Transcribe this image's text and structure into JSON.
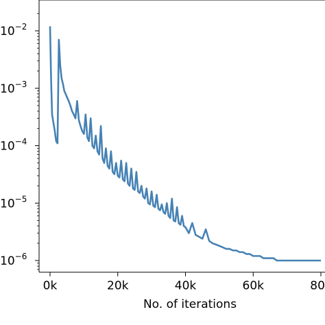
{
  "chart_data": {
    "type": "line",
    "title": "",
    "xlabel": "No. of iterations",
    "ylabel": "",
    "xscale": "linear",
    "yscale": "log",
    "xlim": [
      -4000,
      80000
    ],
    "ylim": [
      5e-07,
      0.02
    ],
    "grid": false,
    "legend": "none",
    "color": "#4682b4",
    "x_ticks": [
      {
        "value": 0,
        "label": "0k"
      },
      {
        "value": 20000,
        "label": "20k"
      },
      {
        "value": 40000,
        "label": "40k"
      },
      {
        "value": 60000,
        "label": "60k"
      },
      {
        "value": 80000,
        "label": "80k"
      }
    ],
    "y_ticks": [
      {
        "value": 0.01,
        "base": "10",
        "exp": "−2"
      },
      {
        "value": 0.001,
        "base": "10",
        "exp": "−3"
      },
      {
        "value": 0.0001,
        "base": "10",
        "exp": "−4"
      },
      {
        "value": 1e-05,
        "base": "10",
        "exp": "−5"
      },
      {
        "value": 1e-06,
        "base": "10",
        "exp": "−6"
      }
    ],
    "series": [
      {
        "x": [
          0,
          300,
          600,
          1000,
          1400,
          1800,
          2200,
          2600,
          3000,
          3400,
          3800,
          4200,
          4600,
          5000,
          5500,
          6000,
          6500,
          7000,
          7500,
          8000,
          8500,
          9000,
          9500,
          10000,
          10500,
          11000,
          11500,
          12000,
          12500,
          13000,
          13500,
          14000,
          14500,
          15000,
          15500,
          16000,
          16500,
          17000,
          17500,
          18000,
          18500,
          19000,
          19500,
          20000,
          20500,
          21000,
          21500,
          22000,
          22500,
          23000,
          23500,
          24000,
          24500,
          25000,
          25500,
          26000,
          26500,
          27000,
          27500,
          28000,
          28500,
          29000,
          29500,
          30000,
          30500,
          31000,
          31500,
          32000,
          32500,
          33000,
          33500,
          34000,
          34500,
          35000,
          35500,
          36000,
          36500,
          37000,
          37500,
          38000,
          38500,
          39000,
          39500,
          40000,
          41000,
          42000,
          43000,
          44000,
          45000,
          46000,
          47000,
          48000,
          49000,
          50000,
          51000,
          52000,
          53000,
          54000,
          55000,
          56000,
          57000,
          58000,
          59000,
          60000,
          61000,
          62000,
          63000,
          64000,
          65000,
          66000,
          67000,
          68000,
          69000,
          70000,
          71000,
          72000,
          73000,
          74000,
          75000,
          76000,
          77000,
          78000,
          79000,
          80000
        ],
        "y": [
          0.012,
          0.0015,
          0.00035,
          0.00025,
          0.00018,
          0.00012,
          0.00011,
          0.007,
          0.0025,
          0.0015,
          0.0012,
          0.0009,
          0.0008,
          0.0007,
          0.0006,
          0.0005,
          0.0004,
          0.00035,
          0.0003,
          0.0006,
          0.00028,
          0.00022,
          0.00018,
          0.00016,
          0.00035,
          0.00014,
          0.00012,
          0.0003,
          0.0001,
          9e-05,
          0.00015,
          8e-05,
          7e-05,
          0.00022,
          6e-05,
          5e-05,
          9e-05,
          4.5e-05,
          4e-05,
          8e-05,
          3.5e-05,
          3.2e-05,
          5e-05,
          3e-05,
          2.8e-05,
          5.5e-05,
          2.6e-05,
          2.4e-05,
          5e-05,
          2.2e-05,
          2e-05,
          4e-05,
          1.8e-05,
          1.7e-05,
          3.5e-05,
          1.6e-05,
          1.5e-05,
          2e-05,
          1.3e-05,
          1.2e-05,
          1.8e-05,
          1e-05,
          9.5e-06,
          1.6e-05,
          9e-06,
          8.5e-06,
          1.4e-05,
          8e-06,
          7.5e-06,
          9.5e-06,
          7e-06,
          6.5e-06,
          1e-05,
          6e-06,
          5.5e-06,
          1.2e-05,
          5e-06,
          4.8e-06,
          8.5e-06,
          4.5e-06,
          4.2e-06,
          6e-06,
          4e-06,
          3.8e-06,
          3e-06,
          4.5e-06,
          2.8e-06,
          2.6e-06,
          2.4e-06,
          3.5e-06,
          2.2e-06,
          2e-06,
          1.9e-06,
          1.8e-06,
          1.7e-06,
          1.6e-06,
          1.6e-06,
          1.5e-06,
          1.5e-06,
          1.4e-06,
          1.4e-06,
          1.3e-06,
          1.3e-06,
          1.2e-06,
          1.2e-06,
          1.2e-06,
          1.1e-06,
          1.1e-06,
          1.1e-06,
          1.1e-06,
          1e-06,
          1e-06,
          1e-06,
          1e-06,
          1e-06,
          1e-06,
          1e-06,
          1e-06,
          1e-06,
          1e-06,
          1e-06,
          1e-06,
          1e-06,
          1e-06
        ]
      }
    ]
  }
}
